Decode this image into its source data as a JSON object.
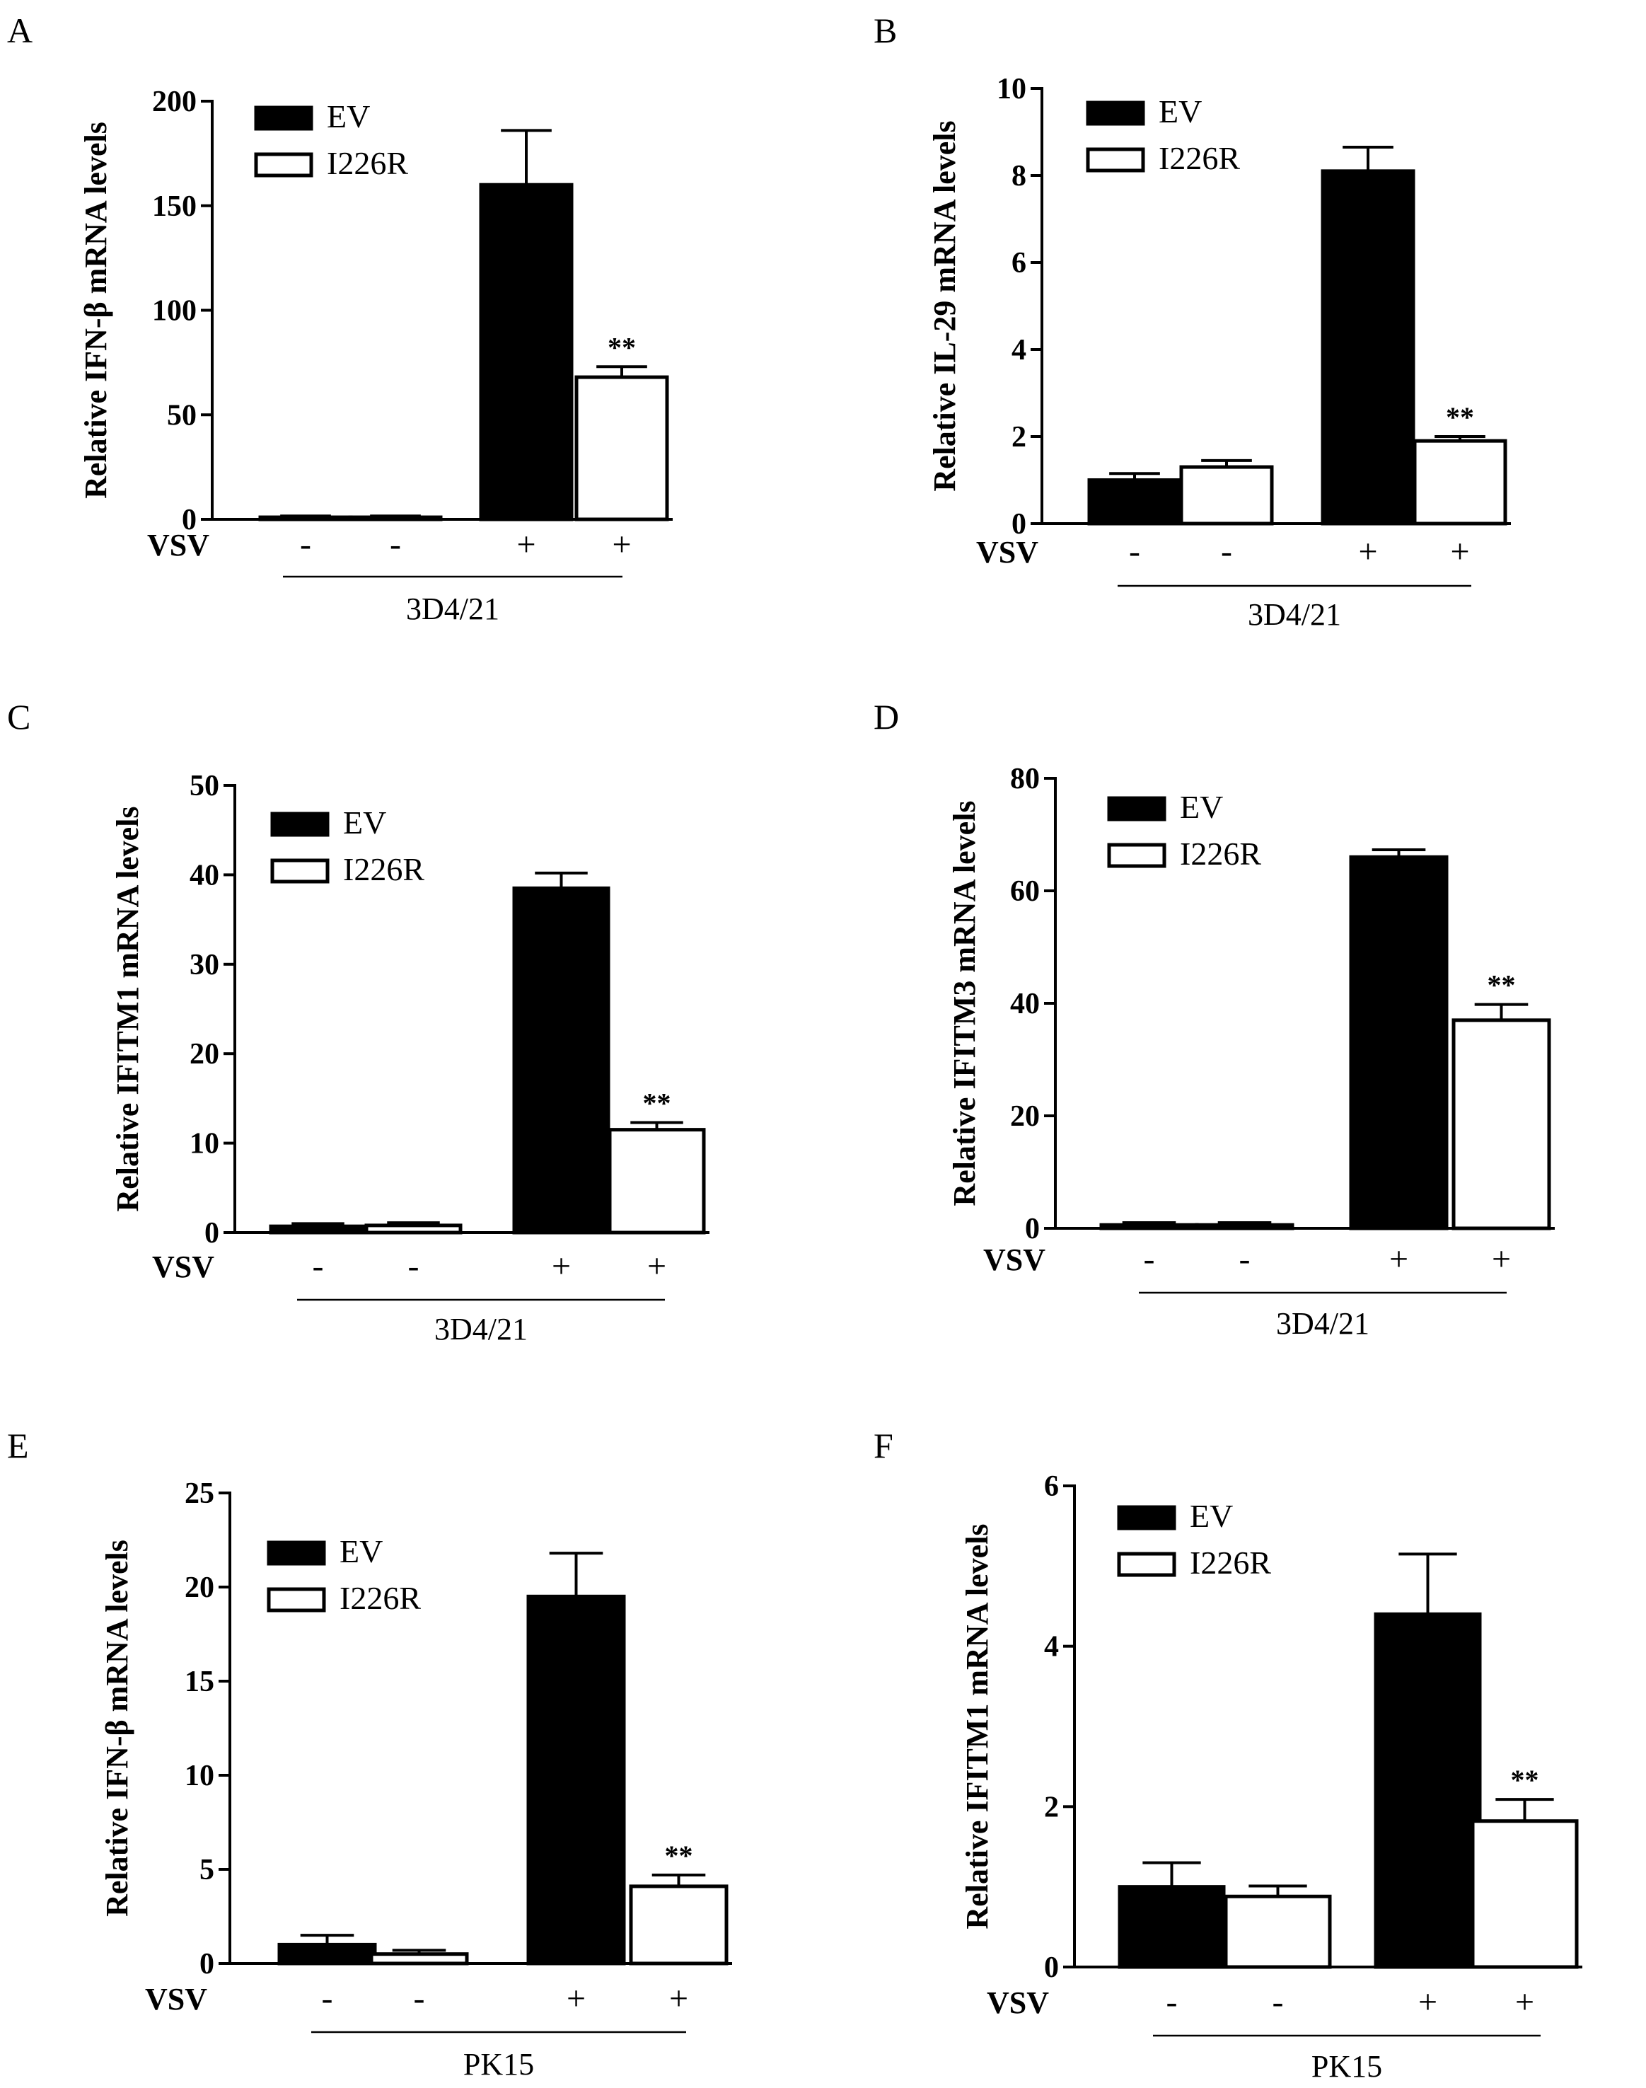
{
  "figure": {
    "chart_data": [
      {
        "panel": "A",
        "type": "bar",
        "title": "",
        "xlabel": "",
        "ylabel": "Relative IFN-β mRNA levels",
        "ylim": [
          0,
          200
        ],
        "yticks": [
          "0",
          "50",
          "100",
          "150",
          "200"
        ],
        "legend": [
          "EV",
          "I226R"
        ],
        "legend_position": "top-left",
        "row_label": "VSV",
        "conditions": [
          "-",
          "-",
          "+",
          "+"
        ],
        "cell_line": "3D4/21",
        "series_of_bar": [
          "EV",
          "I226R",
          "EV",
          "I226R"
        ],
        "values": [
          1,
          1,
          160,
          68
        ],
        "errors": [
          0.6,
          0.6,
          26,
          5
        ],
        "annotations": [
          "",
          "",
          "",
          "**"
        ]
      },
      {
        "panel": "B",
        "type": "bar",
        "title": "",
        "xlabel": "",
        "ylabel": "Relative IL-29 mRNA levels",
        "ylim": [
          0,
          10
        ],
        "yticks": [
          "0",
          "2",
          "4",
          "6",
          "8",
          "10"
        ],
        "legend": [
          "EV",
          "I226R"
        ],
        "legend_position": "top-left",
        "row_label": "VSV",
        "conditions": [
          "-",
          "-",
          "+",
          "+"
        ],
        "cell_line": "3D4/21",
        "series_of_bar": [
          "EV",
          "I226R",
          "EV",
          "I226R"
        ],
        "values": [
          1.0,
          1.3,
          8.1,
          1.9
        ],
        "errors": [
          0.15,
          0.15,
          0.55,
          0.1
        ],
        "annotations": [
          "",
          "",
          "",
          "**"
        ]
      },
      {
        "panel": "C",
        "type": "bar",
        "title": "",
        "xlabel": "",
        "ylabel": "Relative IFITM1 mRNA levels",
        "ylim": [
          0,
          50
        ],
        "yticks": [
          "0",
          "10",
          "20",
          "30",
          "40",
          "50"
        ],
        "legend": [
          "EV",
          "I226R"
        ],
        "legend_position": "top-left",
        "row_label": "VSV",
        "conditions": [
          "-",
          "-",
          "+",
          "+"
        ],
        "cell_line": "3D4/21",
        "series_of_bar": [
          "EV",
          "I226R",
          "EV",
          "I226R"
        ],
        "values": [
          0.7,
          0.8,
          38.5,
          11.5
        ],
        "errors": [
          0.3,
          0.3,
          1.7,
          0.8
        ],
        "annotations": [
          "",
          "",
          "",
          "**"
        ]
      },
      {
        "panel": "D",
        "type": "bar",
        "title": "",
        "xlabel": "",
        "ylabel": "Relative IFITM3 mRNA levels",
        "ylim": [
          0,
          80
        ],
        "yticks": [
          "0",
          "20",
          "40",
          "60",
          "80"
        ],
        "legend": [
          "EV",
          "I226R"
        ],
        "legend_position": "top-left",
        "row_label": "VSV",
        "conditions": [
          "-",
          "-",
          "+",
          "+"
        ],
        "cell_line": "3D4/21",
        "series_of_bar": [
          "EV",
          "I226R",
          "EV",
          "I226R"
        ],
        "values": [
          0.6,
          0.6,
          66,
          37
        ],
        "errors": [
          0.4,
          0.4,
          1.3,
          2.8
        ],
        "annotations": [
          "",
          "",
          "",
          "**"
        ]
      },
      {
        "panel": "E",
        "type": "bar",
        "title": "",
        "xlabel": "",
        "ylabel": "Relative IFN-β mRNA levels",
        "ylim": [
          0,
          25
        ],
        "yticks": [
          "0",
          "5",
          "10",
          "15",
          "20",
          "25"
        ],
        "legend": [
          "EV",
          "I226R"
        ],
        "legend_position": "top-left",
        "row_label": "VSV",
        "conditions": [
          "-",
          "-",
          "+",
          "+"
        ],
        "cell_line": "PK15",
        "series_of_bar": [
          "EV",
          "I226R",
          "EV",
          "I226R"
        ],
        "values": [
          1.0,
          0.5,
          19.5,
          4.1
        ],
        "errors": [
          0.5,
          0.2,
          2.3,
          0.6
        ],
        "annotations": [
          "",
          "",
          "",
          "**"
        ]
      },
      {
        "panel": "F",
        "type": "bar",
        "title": "",
        "xlabel": "",
        "ylabel": "Relative IFITM1 mRNA levels",
        "ylim": [
          0,
          6
        ],
        "yticks": [
          "0",
          "2",
          "4",
          "6"
        ],
        "legend": [
          "EV",
          "I226R"
        ],
        "legend_position": "top-left",
        "row_label": "VSV",
        "conditions": [
          "-",
          "-",
          "+",
          "+"
        ],
        "cell_line": "PK15",
        "series_of_bar": [
          "EV",
          "I226R",
          "EV",
          "I226R"
        ],
        "values": [
          1.0,
          0.88,
          4.4,
          1.82
        ],
        "errors": [
          0.3,
          0.13,
          0.75,
          0.27
        ],
        "annotations": [
          "",
          "",
          "",
          "**"
        ]
      }
    ]
  },
  "colors": {
    "ev_fill": "#000000",
    "i226r_fill": "#ffffff",
    "stroke": "#000000"
  }
}
